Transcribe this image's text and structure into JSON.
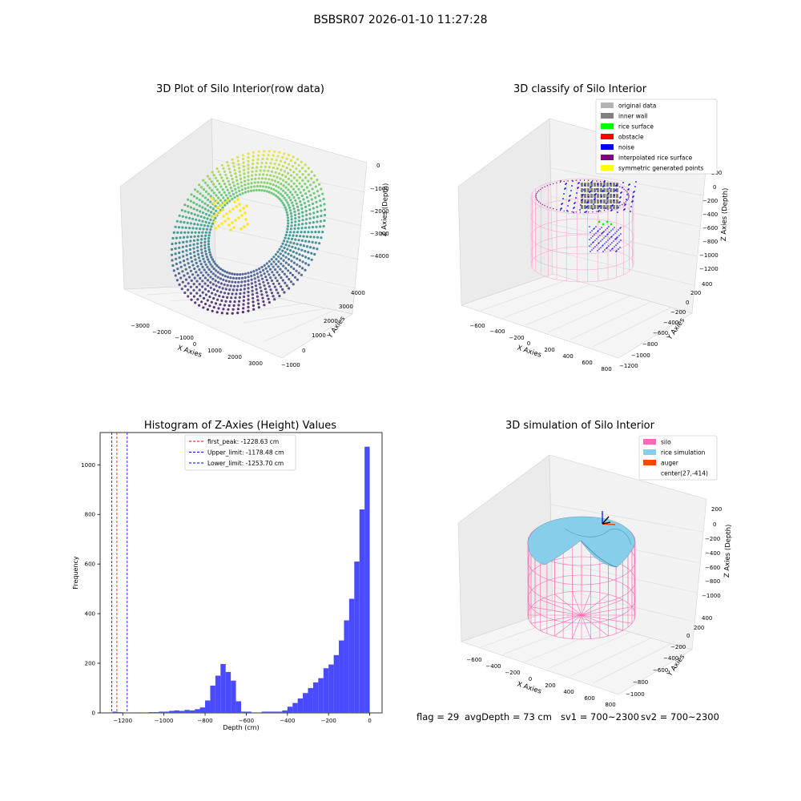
{
  "suptitle": "BSBSR07 2026-01-10 11:27:28",
  "status_line": {
    "flag": "flag = 29",
    "avg_depth": "avgDepth = 73 cm",
    "sv1": "sv1 = 700~2300",
    "sv2": "sv2 = 700~2300"
  },
  "chart_data": [
    {
      "type": "scatter",
      "title": "3D Plot of Silo Interior(row data)",
      "xlabel": "X Axies",
      "ylabel": "Y Axies",
      "zlabel": "Z Axies (Depth)",
      "x_ticks": [
        "−3000",
        "−2000",
        "−1000",
        "0",
        "1000",
        "2000",
        "3000"
      ],
      "y_ticks": [
        "−1000",
        "0",
        "1000",
        "2000",
        "3000",
        "4000"
      ],
      "z_ticks": [
        "0",
        "−1000",
        "−2000",
        "−3000",
        "−4000"
      ],
      "colormap": "viridis",
      "grid": true
    },
    {
      "type": "scatter",
      "title": "3D classify of Silo Interior",
      "xlabel": "X Axies",
      "ylabel": "Y Axies",
      "zlabel": "Z Axies (Depth)",
      "x_ticks": [
        "−600",
        "−400",
        "−200",
        "0",
        "200",
        "400",
        "600",
        "800"
      ],
      "y_ticks": [
        "−1200",
        "−1000",
        "−800",
        "−600",
        "−400",
        "−200",
        "0",
        "200",
        "400"
      ],
      "z_ticks": [
        "200",
        "0",
        "−200",
        "−400",
        "−600",
        "−800",
        "−1000",
        "−1200"
      ],
      "legend_position": "top-right",
      "legend": [
        {
          "label": "original data",
          "color": "#b3b3b3"
        },
        {
          "label": "inner wall",
          "color": "#808080"
        },
        {
          "label": "rice surface",
          "color": "#00ff00"
        },
        {
          "label": "obstacle",
          "color": "#ff0000"
        },
        {
          "label": "noise",
          "color": "#0000ff"
        },
        {
          "label": "interpolated rice surface",
          "color": "#800080"
        },
        {
          "label": "symmetric generated points",
          "color": "#ffff00"
        }
      ],
      "grid": true
    },
    {
      "type": "bar",
      "title": "Histogram of Z-Axies (Height) Values",
      "xlabel": "Depth (cm)",
      "ylabel": "Frequency",
      "xlim": [
        -1310,
        60
      ],
      "ylim": [
        0,
        1130
      ],
      "x_ticks": [
        -1200,
        -1000,
        -800,
        -600,
        -400,
        -200,
        0
      ],
      "x_tick_labels": [
        "−1200",
        "−1000",
        "−800",
        "−600",
        "−400",
        "−200",
        "0"
      ],
      "y_ticks": [
        0,
        200,
        400,
        600,
        800,
        1000
      ],
      "bar_color": "#4a4aff",
      "bins": [
        {
          "x0": -1250,
          "x1": -1225,
          "count": 5
        },
        {
          "x0": -1225,
          "x1": -1200,
          "count": 3
        },
        {
          "x0": -1125,
          "x1": -1100,
          "count": 2
        },
        {
          "x0": -1075,
          "x1": -1050,
          "count": 3
        },
        {
          "x0": -1050,
          "x1": -1025,
          "count": 3
        },
        {
          "x0": -1025,
          "x1": -1000,
          "count": 5
        },
        {
          "x0": -1000,
          "x1": -975,
          "count": 5
        },
        {
          "x0": -975,
          "x1": -950,
          "count": 8
        },
        {
          "x0": -950,
          "x1": -925,
          "count": 10
        },
        {
          "x0": -925,
          "x1": -900,
          "count": 8
        },
        {
          "x0": -900,
          "x1": -875,
          "count": 12
        },
        {
          "x0": -875,
          "x1": -850,
          "count": 10
        },
        {
          "x0": -850,
          "x1": -825,
          "count": 15
        },
        {
          "x0": -825,
          "x1": -800,
          "count": 22
        },
        {
          "x0": -800,
          "x1": -775,
          "count": 50
        },
        {
          "x0": -775,
          "x1": -750,
          "count": 110
        },
        {
          "x0": -750,
          "x1": -725,
          "count": 150
        },
        {
          "x0": -725,
          "x1": -700,
          "count": 197
        },
        {
          "x0": -700,
          "x1": -675,
          "count": 165
        },
        {
          "x0": -675,
          "x1": -650,
          "count": 130
        },
        {
          "x0": -650,
          "x1": -625,
          "count": 47
        },
        {
          "x0": -625,
          "x1": -600,
          "count": 5
        },
        {
          "x0": -600,
          "x1": -575,
          "count": 5
        },
        {
          "x0": -550,
          "x1": -525,
          "count": 2
        },
        {
          "x0": -525,
          "x1": -500,
          "count": 5
        },
        {
          "x0": -500,
          "x1": -475,
          "count": 5
        },
        {
          "x0": -475,
          "x1": -450,
          "count": 5
        },
        {
          "x0": -450,
          "x1": -425,
          "count": 5
        },
        {
          "x0": -425,
          "x1": -400,
          "count": 10
        },
        {
          "x0": -400,
          "x1": -375,
          "count": 25
        },
        {
          "x0": -375,
          "x1": -350,
          "count": 40
        },
        {
          "x0": -350,
          "x1": -325,
          "count": 58
        },
        {
          "x0": -325,
          "x1": -300,
          "count": 80
        },
        {
          "x0": -300,
          "x1": -275,
          "count": 100
        },
        {
          "x0": -275,
          "x1": -250,
          "count": 123
        },
        {
          "x0": -250,
          "x1": -225,
          "count": 140
        },
        {
          "x0": -225,
          "x1": -200,
          "count": 180
        },
        {
          "x0": -200,
          "x1": -175,
          "count": 195
        },
        {
          "x0": -175,
          "x1": -150,
          "count": 233
        },
        {
          "x0": -150,
          "x1": -125,
          "count": 292
        },
        {
          "x0": -125,
          "x1": -100,
          "count": 373
        },
        {
          "x0": -100,
          "x1": -75,
          "count": 460
        },
        {
          "x0": -75,
          "x1": -50,
          "count": 610
        },
        {
          "x0": -50,
          "x1": -25,
          "count": 820
        },
        {
          "x0": -25,
          "x1": 0,
          "count": 1073
        }
      ],
      "vlines": [
        {
          "label": "first_peak: -1228.63 cm",
          "x": -1228.63,
          "color": "#ff0000"
        },
        {
          "label": "Upper_limit: -1178.48 cm",
          "x": -1178.48,
          "color": "#0000ff"
        },
        {
          "label": "Lower_limit: -1253.70 cm",
          "x": -1253.7,
          "color": "#0000ff"
        }
      ],
      "legend_position": "top-center"
    },
    {
      "type": "surface",
      "title": "3D simulation of Silo Interior",
      "xlabel": "X Axies",
      "ylabel": "Y Axies",
      "zlabel": "Z Axies (Depth)",
      "x_ticks": [
        "−600",
        "−400",
        "−200",
        "0",
        "200",
        "400",
        "600",
        "800"
      ],
      "y_ticks": [
        "−1000",
        "−800",
        "−600",
        "−400",
        "−200",
        "0",
        "200",
        "400"
      ],
      "z_ticks": [
        "200",
        "0",
        "−200",
        "−400",
        "−600",
        "−800",
        "−1000"
      ],
      "legend_position": "top-right",
      "legend": [
        {
          "label": "silo",
          "color": "#ff69b4"
        },
        {
          "label": "rice simulation",
          "color": "#87ceeb"
        },
        {
          "label": "auger",
          "color": "#ff4500"
        },
        {
          "label": "center(27,-414)",
          "color": ""
        }
      ],
      "grid": true
    }
  ]
}
